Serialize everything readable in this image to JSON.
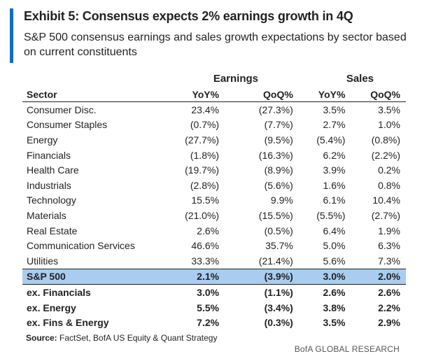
{
  "exhibit": {
    "title": "Exhibit 5: Consensus expects 2% earnings growth in 4Q",
    "subtitle": "S&P 500 consensus earnings and sales growth expectations by sector based on current constituents"
  },
  "table": {
    "groups": {
      "earnings": "Earnings",
      "sales": "Sales"
    },
    "columns": [
      "Sector",
      "YoY%",
      "QoQ%",
      "YoY%",
      "QoQ%"
    ],
    "rows": [
      {
        "sector": "Consumer Disc.",
        "e_yoy": "23.4%",
        "e_qoq": "(27.3%)",
        "s_yoy": "3.5%",
        "s_qoq": "3.5%"
      },
      {
        "sector": "Consumer Staples",
        "e_yoy": "(0.7%)",
        "e_qoq": "(7.7%)",
        "s_yoy": "2.7%",
        "s_qoq": "1.0%"
      },
      {
        "sector": "Energy",
        "e_yoy": "(27.7%)",
        "e_qoq": "(9.5%)",
        "s_yoy": "(5.4%)",
        "s_qoq": "(0.8%)"
      },
      {
        "sector": "Financials",
        "e_yoy": "(1.8%)",
        "e_qoq": "(16.3%)",
        "s_yoy": "6.2%",
        "s_qoq": "(2.2%)"
      },
      {
        "sector": "Health Care",
        "e_yoy": "(19.7%)",
        "e_qoq": "(8.9%)",
        "s_yoy": "3.9%",
        "s_qoq": "0.2%"
      },
      {
        "sector": "Industrials",
        "e_yoy": "(2.8%)",
        "e_qoq": "(5.6%)",
        "s_yoy": "1.6%",
        "s_qoq": "0.8%"
      },
      {
        "sector": "Technology",
        "e_yoy": "15.5%",
        "e_qoq": "9.9%",
        "s_yoy": "6.1%",
        "s_qoq": "10.4%"
      },
      {
        "sector": "Materials",
        "e_yoy": "(21.0%)",
        "e_qoq": "(15.5%)",
        "s_yoy": "(5.5%)",
        "s_qoq": "(2.7%)"
      },
      {
        "sector": "Real Estate",
        "e_yoy": "2.6%",
        "e_qoq": "(0.5%)",
        "s_yoy": "6.4%",
        "s_qoq": "1.9%"
      },
      {
        "sector": "Communication Services",
        "e_yoy": "46.6%",
        "e_qoq": "35.7%",
        "s_yoy": "5.0%",
        "s_qoq": "6.3%"
      },
      {
        "sector": "Utilities",
        "e_yoy": "33.3%",
        "e_qoq": "(21.4%)",
        "s_yoy": "5.6%",
        "s_qoq": "7.3%"
      }
    ],
    "total": {
      "sector": "S&P 500",
      "e_yoy": "2.1%",
      "e_qoq": "(3.9%)",
      "s_yoy": "3.0%",
      "s_qoq": "2.0%"
    },
    "extra_rows": [
      {
        "sector": "ex. Financials",
        "e_yoy": "3.0%",
        "e_qoq": "(1.1%)",
        "s_yoy": "2.6%",
        "s_qoq": "2.6%"
      },
      {
        "sector": "ex. Energy",
        "e_yoy": "5.5%",
        "e_qoq": "(3.4%)",
        "s_yoy": "3.8%",
        "s_qoq": "2.2%"
      },
      {
        "sector": "ex. Fins & Energy",
        "e_yoy": "7.2%",
        "e_qoq": "(0.3%)",
        "s_yoy": "3.5%",
        "s_qoq": "2.9%"
      }
    ]
  },
  "source": {
    "label": "Source:",
    "text": "FactSet, BofA US Equity & Quant Strategy"
  },
  "brand": "BofA GLOBAL RESEARCH",
  "colors": {
    "accent": "#0f6fc6",
    "highlight": "#a8cdf0"
  }
}
